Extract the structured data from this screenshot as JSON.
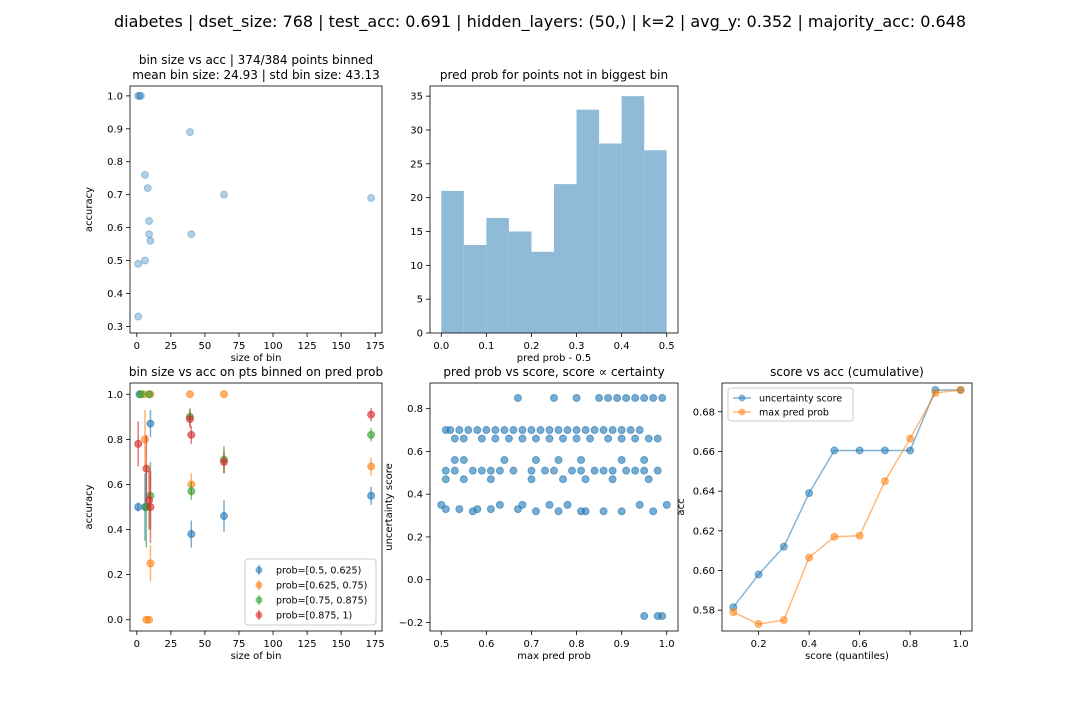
{
  "suptitle": "diabetes | dset_size: 768 | test_acc: 0.691 | hidden_layers: (50,) | k=2 | avg_y: 0.352 | majority_acc: 0.648",
  "colors": {
    "c0": "#1f77b4",
    "c1": "#ff7f0e",
    "c2": "#2ca02c",
    "c3": "#d62728",
    "hist": "#8fbbd9",
    "scatter_light": "#a9cce3"
  },
  "chart_data": [
    {
      "id": "p1",
      "type": "scatter",
      "title": "bin size vs acc | 374/384 points binned",
      "subtitle": "mean bin size: 24.93 | std bin size: 43.13",
      "xlabel": "size of bin",
      "ylabel": "accuracy",
      "xlim": [
        -5,
        180
      ],
      "ylim": [
        0.28,
        1.03
      ],
      "xticks": [
        "0",
        "25",
        "50",
        "75",
        "100",
        "125",
        "150",
        "175"
      ],
      "xtick_values": [
        0,
        25,
        50,
        75,
        100,
        125,
        150,
        175
      ],
      "yticks": [
        "0.3",
        "0.4",
        "0.5",
        "0.6",
        "0.7",
        "0.8",
        "0.9",
        "1.0"
      ],
      "ytick_values": [
        0.3,
        0.4,
        0.5,
        0.6,
        0.7,
        0.8,
        0.9,
        1.0
      ],
      "points": [
        [
          1,
          1.0
        ],
        [
          2,
          1.0
        ],
        [
          3,
          1.0
        ],
        [
          1,
          0.49
        ],
        [
          1,
          0.33
        ],
        [
          6,
          0.5
        ],
        [
          6,
          0.76
        ],
        [
          8,
          0.72
        ],
        [
          9,
          0.62
        ],
        [
          9,
          0.58
        ],
        [
          10,
          0.56
        ],
        [
          39,
          0.89
        ],
        [
          40,
          0.58
        ],
        [
          64,
          0.7
        ],
        [
          172,
          0.69
        ]
      ]
    },
    {
      "id": "p2",
      "type": "bar",
      "title": "pred prob for points not in biggest bin",
      "xlabel": "pred prob - 0.5",
      "ylabel": "",
      "xlim": [
        -0.025,
        0.525
      ],
      "ylim": [
        0,
        36.5
      ],
      "xticks": [
        "0.0",
        "0.1",
        "0.2",
        "0.3",
        "0.4",
        "0.5"
      ],
      "xtick_values": [
        0,
        0.1,
        0.2,
        0.3,
        0.4,
        0.5
      ],
      "yticks": [
        "0",
        "5",
        "10",
        "15",
        "20",
        "25",
        "30",
        "35"
      ],
      "ytick_values": [
        0,
        5,
        10,
        15,
        20,
        25,
        30,
        35
      ],
      "bin_edges": [
        0,
        0.05,
        0.1,
        0.15,
        0.2,
        0.25,
        0.3,
        0.35,
        0.4,
        0.45,
        0.5
      ],
      "values": [
        21,
        13,
        17,
        15,
        12,
        22,
        33,
        28,
        35,
        27
      ]
    },
    {
      "id": "p3",
      "type": "scatter",
      "title": "bin size vs acc on pts binned on pred prob",
      "xlabel": "size of bin",
      "ylabel": "accuracy",
      "xlim": [
        -5,
        180
      ],
      "ylim": [
        -0.05,
        1.05
      ],
      "xticks": [
        "0",
        "25",
        "50",
        "75",
        "100",
        "125",
        "150",
        "175"
      ],
      "xtick_values": [
        0,
        25,
        50,
        75,
        100,
        125,
        150,
        175
      ],
      "yticks": [
        "0.0",
        "0.2",
        "0.4",
        "0.6",
        "0.8",
        "1.0"
      ],
      "ytick_values": [
        0,
        0.2,
        0.4,
        0.6,
        0.8,
        1.0
      ],
      "legend_position": "lower-right",
      "series": [
        {
          "name": "prob=[0.5, 0.625)",
          "color": "#1f77b4",
          "points": [
            [
              1,
              0.5,
              0.02
            ],
            [
              2,
              1.0,
              0.0
            ],
            [
              6,
              0.5,
              0.15
            ],
            [
              10,
              0.87,
              0.06
            ],
            [
              40,
              0.38,
              0.06
            ],
            [
              64,
              0.46,
              0.07
            ],
            [
              172,
              0.55,
              0.04
            ]
          ]
        },
        {
          "name": "prob=[0.625, 0.75)",
          "color": "#ff7f0e",
          "points": [
            [
              5,
              1.0,
              0.0
            ],
            [
              6,
              0.8,
              0.13
            ],
            [
              7,
              0.0,
              0.0
            ],
            [
              9,
              0.0,
              0.0
            ],
            [
              10,
              0.25,
              0.08
            ],
            [
              10,
              1.0,
              0.0
            ],
            [
              39,
              1.0,
              0.0
            ],
            [
              40,
              0.6,
              0.05
            ],
            [
              64,
              1.0,
              0.0
            ],
            [
              172,
              0.68,
              0.04
            ]
          ]
        },
        {
          "name": "prob=[0.75, 0.875)",
          "color": "#2ca02c",
          "points": [
            [
              3,
              1.0,
              0.0
            ],
            [
              7,
              0.5,
              0.18
            ],
            [
              9,
              1.0,
              0.0
            ],
            [
              10,
              0.55,
              0.15
            ],
            [
              39,
              0.9,
              0.04
            ],
            [
              40,
              0.57,
              0.04
            ],
            [
              64,
              0.71,
              0.06
            ],
            [
              172,
              0.82,
              0.03
            ]
          ]
        },
        {
          "name": "prob=[0.875, 1)",
          "color": "#d62728",
          "points": [
            [
              1,
              0.78,
              0.1
            ],
            [
              7,
              0.67,
              0.15
            ],
            [
              9,
              0.53,
              0.13
            ],
            [
              10,
              0.5,
              0.16
            ],
            [
              39,
              0.89,
              0.04
            ],
            [
              40,
              0.82,
              0.04
            ],
            [
              64,
              0.7,
              0.05
            ],
            [
              172,
              0.91,
              0.03
            ]
          ]
        }
      ]
    },
    {
      "id": "p4",
      "type": "scatter",
      "title": "pred prob vs score, score ∝ certainty",
      "xlabel": "max pred prob",
      "ylabel": "uncertainty score",
      "xlim": [
        0.475,
        1.025
      ],
      "ylim": [
        -0.24,
        0.92
      ],
      "xticks": [
        "0.5",
        "0.6",
        "0.7",
        "0.8",
        "0.9",
        "1.0"
      ],
      "xtick_values": [
        0.5,
        0.6,
        0.7,
        0.8,
        0.9,
        1.0
      ],
      "yticks": [
        "−0.2",
        "0.0",
        "0.2",
        "0.4",
        "0.6",
        "0.8"
      ],
      "ytick_values": [
        -0.2,
        0,
        0.2,
        0.4,
        0.6,
        0.8
      ],
      "points": [
        [
          0.51,
          0.7
        ],
        [
          0.52,
          0.7
        ],
        [
          0.54,
          0.7
        ],
        [
          0.56,
          0.7
        ],
        [
          0.58,
          0.7
        ],
        [
          0.6,
          0.7
        ],
        [
          0.62,
          0.7
        ],
        [
          0.64,
          0.7
        ],
        [
          0.66,
          0.7
        ],
        [
          0.68,
          0.7
        ],
        [
          0.7,
          0.7
        ],
        [
          0.72,
          0.7
        ],
        [
          0.74,
          0.7
        ],
        [
          0.76,
          0.7
        ],
        [
          0.78,
          0.7
        ],
        [
          0.8,
          0.7
        ],
        [
          0.82,
          0.7
        ],
        [
          0.84,
          0.7
        ],
        [
          0.86,
          0.7
        ],
        [
          0.88,
          0.7
        ],
        [
          0.9,
          0.7
        ],
        [
          0.92,
          0.7
        ],
        [
          0.94,
          0.7
        ],
        [
          0.53,
          0.66
        ],
        [
          0.55,
          0.66
        ],
        [
          0.59,
          0.66
        ],
        [
          0.62,
          0.66
        ],
        [
          0.65,
          0.66
        ],
        [
          0.68,
          0.66
        ],
        [
          0.71,
          0.66
        ],
        [
          0.74,
          0.66
        ],
        [
          0.77,
          0.66
        ],
        [
          0.8,
          0.66
        ],
        [
          0.83,
          0.66
        ],
        [
          0.87,
          0.66
        ],
        [
          0.9,
          0.66
        ],
        [
          0.93,
          0.66
        ],
        [
          0.96,
          0.66
        ],
        [
          0.98,
          0.66
        ],
        [
          0.67,
          0.85
        ],
        [
          0.75,
          0.85
        ],
        [
          0.8,
          0.85
        ],
        [
          0.85,
          0.85
        ],
        [
          0.87,
          0.85
        ],
        [
          0.89,
          0.85
        ],
        [
          0.91,
          0.85
        ],
        [
          0.93,
          0.85
        ],
        [
          0.95,
          0.85
        ],
        [
          0.97,
          0.85
        ],
        [
          0.99,
          0.85
        ],
        [
          0.53,
          0.56
        ],
        [
          0.55,
          0.56
        ],
        [
          0.64,
          0.56
        ],
        [
          0.71,
          0.56
        ],
        [
          0.76,
          0.56
        ],
        [
          0.81,
          0.56
        ],
        [
          0.9,
          0.56
        ],
        [
          0.95,
          0.56
        ],
        [
          0.51,
          0.51
        ],
        [
          0.53,
          0.51
        ],
        [
          0.57,
          0.51
        ],
        [
          0.59,
          0.51
        ],
        [
          0.61,
          0.51
        ],
        [
          0.63,
          0.51
        ],
        [
          0.66,
          0.51
        ],
        [
          0.7,
          0.51
        ],
        [
          0.73,
          0.51
        ],
        [
          0.75,
          0.51
        ],
        [
          0.79,
          0.51
        ],
        [
          0.81,
          0.51
        ],
        [
          0.84,
          0.51
        ],
        [
          0.86,
          0.51
        ],
        [
          0.88,
          0.51
        ],
        [
          0.91,
          0.51
        ],
        [
          0.93,
          0.51
        ],
        [
          0.95,
          0.51
        ],
        [
          0.98,
          0.51
        ],
        [
          0.51,
          0.47
        ],
        [
          0.55,
          0.47
        ],
        [
          0.61,
          0.47
        ],
        [
          0.7,
          0.47
        ],
        [
          0.77,
          0.47
        ],
        [
          0.82,
          0.47
        ],
        [
          0.88,
          0.47
        ],
        [
          0.96,
          0.47
        ],
        [
          0.5,
          0.35
        ],
        [
          0.51,
          0.33
        ],
        [
          0.54,
          0.33
        ],
        [
          0.57,
          0.32
        ],
        [
          0.58,
          0.33
        ],
        [
          0.61,
          0.33
        ],
        [
          0.63,
          0.35
        ],
        [
          0.67,
          0.33
        ],
        [
          0.68,
          0.35
        ],
        [
          0.71,
          0.32
        ],
        [
          0.74,
          0.35
        ],
        [
          0.76,
          0.32
        ],
        [
          0.78,
          0.35
        ],
        [
          0.81,
          0.32
        ],
        [
          0.82,
          0.32
        ],
        [
          0.86,
          0.32
        ],
        [
          0.9,
          0.32
        ],
        [
          0.94,
          0.35
        ],
        [
          0.97,
          0.32
        ],
        [
          1.0,
          0.35
        ],
        [
          0.95,
          -0.17
        ],
        [
          0.98,
          -0.17
        ],
        [
          0.99,
          -0.17
        ]
      ]
    },
    {
      "id": "p5",
      "type": "line",
      "title": "score vs acc (cumulative)",
      "xlabel": "score (quantiles)",
      "ylabel": "acc",
      "xlim": [
        0.055,
        1.045
      ],
      "ylim": [
        0.5695,
        0.6945
      ],
      "xticks": [
        "0.2",
        "0.4",
        "0.6",
        "0.8",
        "1.0"
      ],
      "xtick_values": [
        0.2,
        0.4,
        0.6,
        0.8,
        1.0
      ],
      "yticks": [
        "0.58",
        "0.60",
        "0.62",
        "0.64",
        "0.66",
        "0.68"
      ],
      "ytick_values": [
        0.58,
        0.6,
        0.62,
        0.64,
        0.66,
        0.68
      ],
      "legend_position": "upper-left",
      "x": [
        0.1,
        0.2,
        0.3,
        0.4,
        0.5,
        0.6,
        0.7,
        0.8,
        0.9,
        1.0
      ],
      "series": [
        {
          "name": "uncertainty score",
          "color": "#1f77b4",
          "values": [
            0.5815,
            0.598,
            0.612,
            0.639,
            0.6605,
            0.6605,
            0.6605,
            0.6605,
            0.691,
            0.691
          ]
        },
        {
          "name": "max pred prob",
          "color": "#ff7f0e",
          "values": [
            0.579,
            0.573,
            0.575,
            0.6065,
            0.617,
            0.6175,
            0.645,
            0.6665,
            0.6895,
            0.691
          ]
        }
      ]
    }
  ]
}
